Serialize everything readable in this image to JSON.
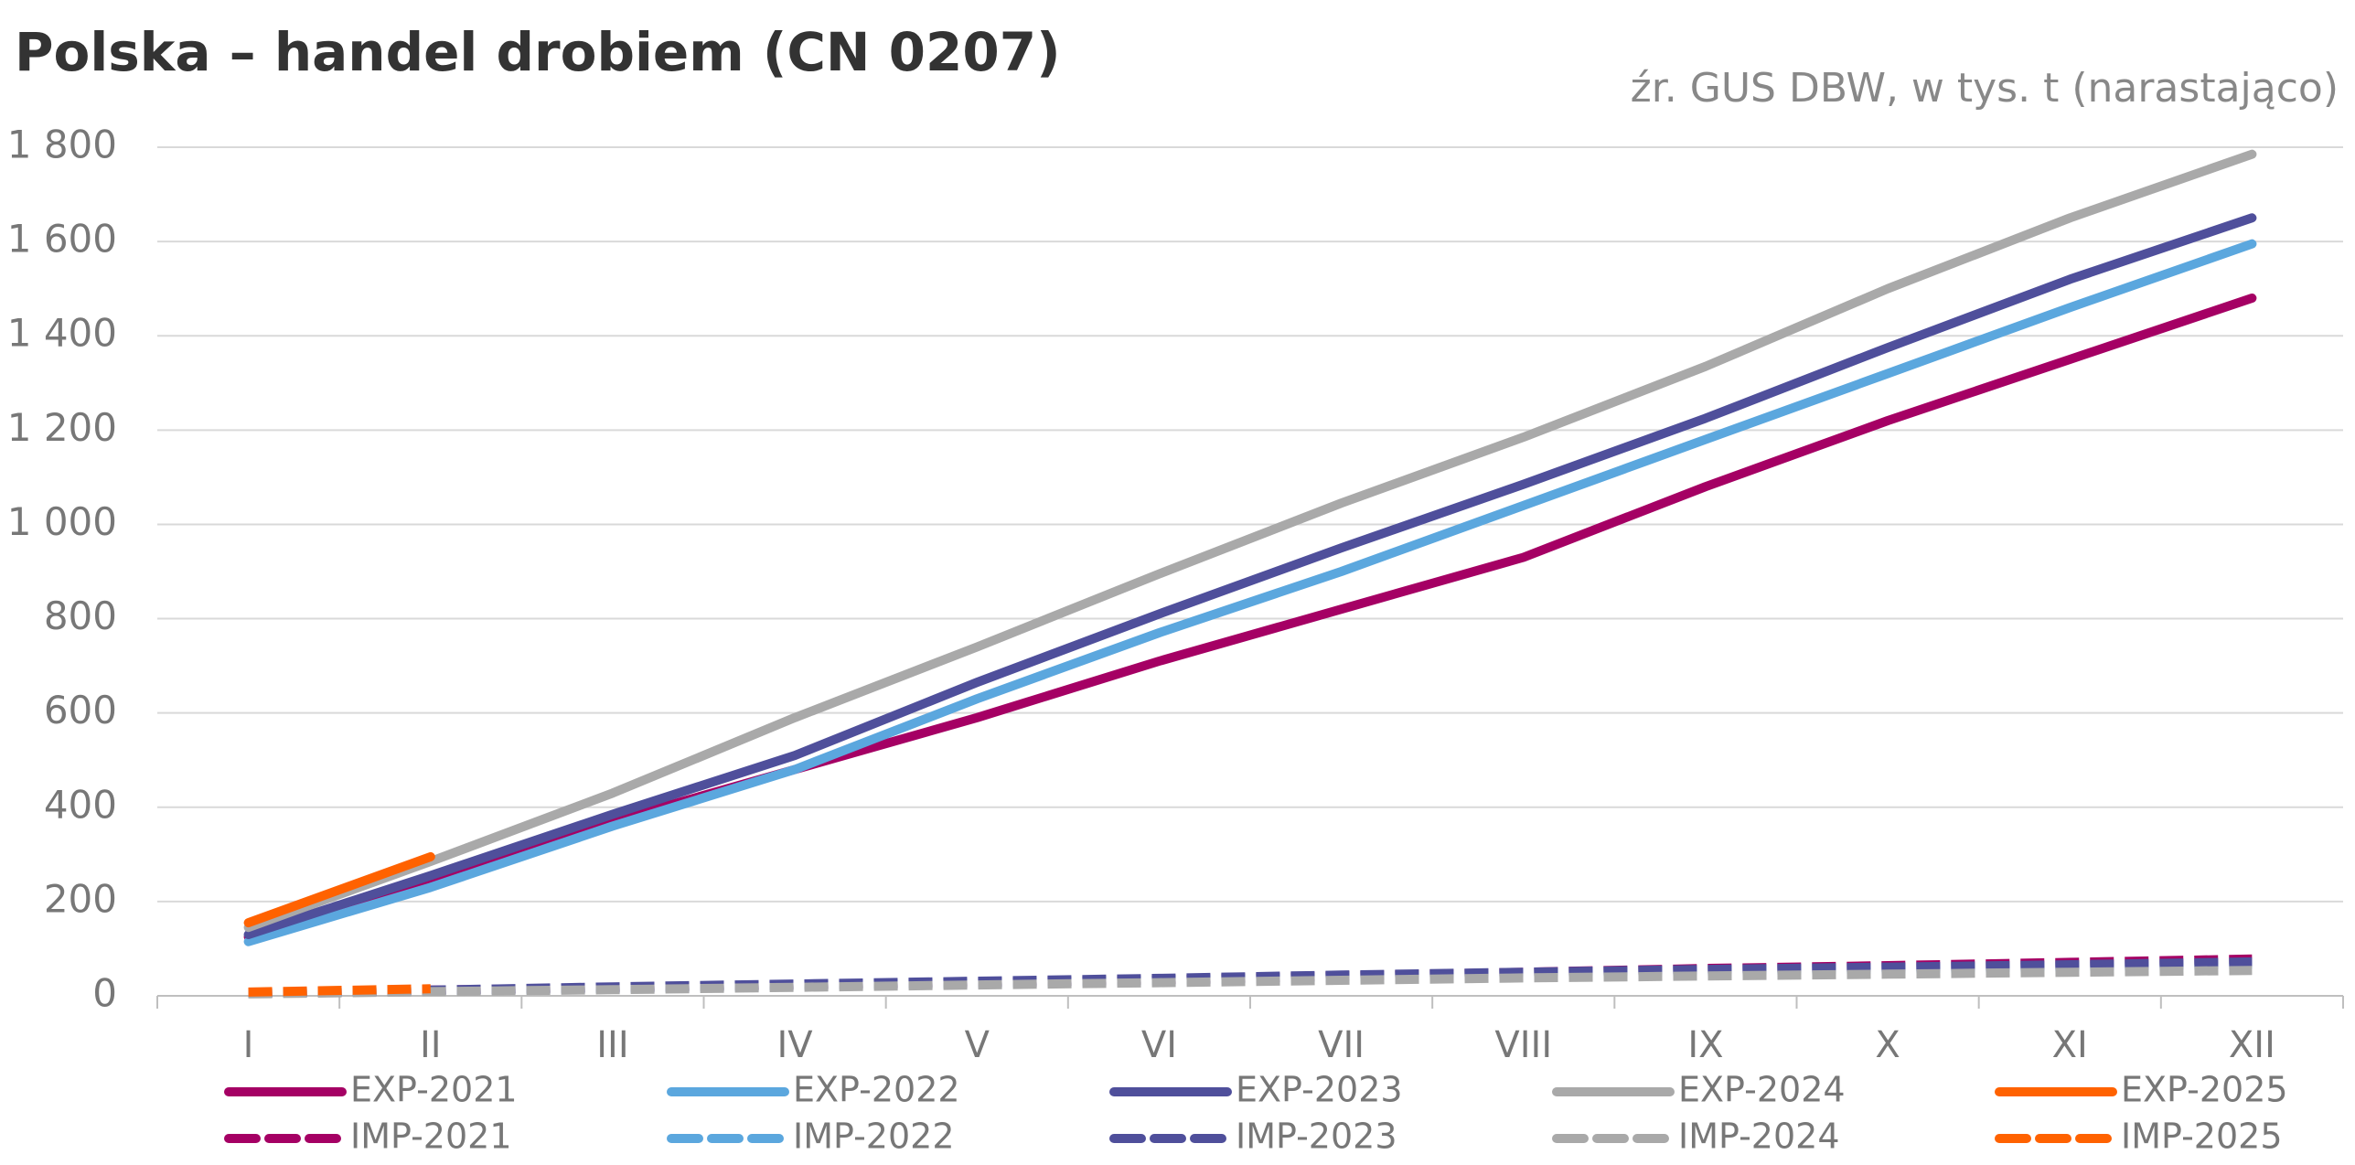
{
  "chart_data": {
    "type": "line",
    "title": "Polska – handel drobiem (CN 0207)",
    "subtitle": "źr. GUS DBW, w tys. t (narastająco)",
    "categories": [
      "I",
      "II",
      "III",
      "IV",
      "V",
      "VI",
      "VII",
      "VIII",
      "IX",
      "X",
      "XI",
      "XII"
    ],
    "ylim": [
      0,
      1800
    ],
    "yticks": [
      0,
      200,
      400,
      600,
      800,
      {
        "value": 1000,
        "label": "1 000"
      },
      {
        "value": 1200,
        "label": "1 200"
      },
      {
        "value": 1400,
        "label": "1 400"
      },
      {
        "value": 1600,
        "label": "1 600"
      },
      {
        "value": 1800,
        "label": "1 800"
      }
    ],
    "grid": true,
    "legend": "bottom",
    "series": [
      {
        "name": "EXP-2021",
        "color": "#a50064",
        "dashed": false,
        "values": [
          125,
          240,
          370,
          480,
          590,
          710,
          820,
          930,
          1080,
          1220,
          1350,
          1480
        ]
      },
      {
        "name": "EXP-2022",
        "color": "#5ba7de",
        "dashed": false,
        "values": [
          115,
          230,
          360,
          480,
          630,
          770,
          900,
          1040,
          1180,
          1320,
          1460,
          1595
        ]
      },
      {
        "name": "EXP-2023",
        "color": "#4f4f9b",
        "dashed": false,
        "values": [
          130,
          255,
          385,
          510,
          665,
          810,
          950,
          1085,
          1225,
          1375,
          1520,
          1650
        ]
      },
      {
        "name": "EXP-2024",
        "color": "#a9a9a9",
        "dashed": false,
        "values": [
          145,
          285,
          430,
          590,
          740,
          895,
          1045,
          1185,
          1335,
          1500,
          1650,
          1785
        ]
      },
      {
        "name": "EXP-2025",
        "color": "#ff6200",
        "dashed": false,
        "values": [
          155,
          295,
          null,
          null,
          null,
          null,
          null,
          null,
          null,
          null,
          null,
          null
        ]
      },
      {
        "name": "IMP-2021",
        "color": "#a50064",
        "dashed": true,
        "values": [
          6,
          12,
          17,
          23,
          28,
          34,
          42,
          50,
          58,
          64,
          71,
          78
        ]
      },
      {
        "name": "IMP-2022",
        "color": "#5ba7de",
        "dashed": true,
        "values": [
          5,
          11,
          16,
          22,
          27,
          33,
          40,
          46,
          52,
          57,
          62,
          67
        ]
      },
      {
        "name": "IMP-2023",
        "color": "#4f4f9b",
        "dashed": true,
        "values": [
          6,
          12,
          19,
          25,
          31,
          37,
          44,
          50,
          56,
          61,
          66,
          72
        ]
      },
      {
        "name": "IMP-2024",
        "color": "#a9a9a9",
        "dashed": true,
        "values": [
          4,
          9,
          13,
          18,
          23,
          28,
          33,
          38,
          42,
          46,
          50,
          54
        ]
      },
      {
        "name": "IMP-2025",
        "color": "#ff6200",
        "dashed": true,
        "values": [
          8,
          15,
          null,
          null,
          null,
          null,
          null,
          null,
          null,
          null,
          null,
          null
        ]
      }
    ]
  }
}
